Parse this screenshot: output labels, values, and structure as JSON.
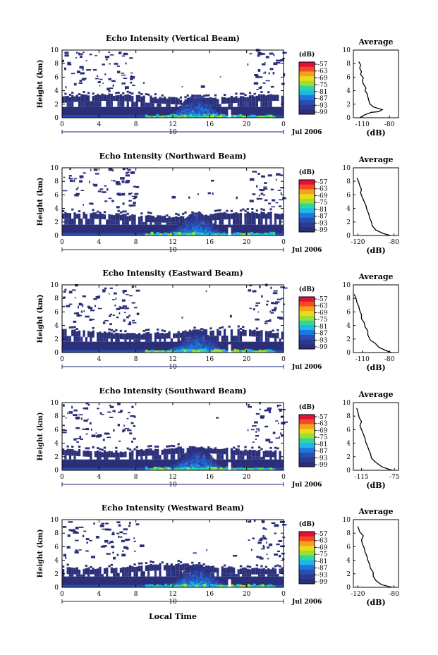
{
  "chart_data": [
    {
      "type": "heatmap",
      "title": "Echo Intensity (Vertical Beam)",
      "ylabel": "Height (km)",
      "xlim": [
        0,
        24
      ],
      "ylim": [
        0,
        10
      ],
      "x_ticks": [
        "0",
        "4",
        "8",
        "12",
        "16",
        "20",
        "0"
      ],
      "y_ticks": [
        "0",
        "2",
        "4",
        "6",
        "8",
        "10"
      ],
      "day_label": "10",
      "month_label": "Jul 2006",
      "colorbar": {
        "unit": "(dB)",
        "ticks": [
          "-57",
          "-63",
          "-69",
          "-75",
          "-81",
          "-87",
          "-93",
          "-99"
        ]
      },
      "profile": {
        "title": "Average",
        "xlabel": "(dB)",
        "x_ticks": [
          "-110",
          "-80"
        ],
        "xlim": [
          -120,
          -70
        ],
        "points": [
          [
            -113,
            0
          ],
          [
            -108,
            0.4
          ],
          [
            -100,
            0.8
          ],
          [
            -92,
            0.9
          ],
          [
            -88,
            1.2
          ],
          [
            -98,
            1.6
          ],
          [
            -102,
            2.1
          ],
          [
            -103,
            2.6
          ],
          [
            -104,
            3.1
          ],
          [
            -105,
            3.6
          ],
          [
            -107,
            4.0
          ],
          [
            -106,
            4.4
          ],
          [
            -109,
            5.0
          ],
          [
            -110,
            5.5
          ],
          [
            -109,
            5.9
          ],
          [
            -112,
            6.4
          ],
          [
            -111,
            6.8
          ],
          [
            -113,
            7.3
          ],
          [
            -112,
            7.8
          ],
          [
            -114,
            8.3
          ]
        ]
      }
    },
    {
      "type": "heatmap",
      "title": "Echo Intensity (Northward Beam)",
      "ylabel": "Height (km)",
      "xlim": [
        0,
        24
      ],
      "ylim": [
        0,
        10
      ],
      "x_ticks": [
        "0",
        "4",
        "8",
        "12",
        "16",
        "20",
        "0"
      ],
      "y_ticks": [
        "0",
        "2",
        "4",
        "6",
        "8",
        "10"
      ],
      "day_label": "10",
      "month_label": "Jul 2006",
      "colorbar": {
        "unit": "(dB)",
        "ticks": [
          "-57",
          "-63",
          "-69",
          "-75",
          "-81",
          "-87",
          "-93",
          "-99"
        ]
      },
      "profile": {
        "title": "Average",
        "xlabel": "(dB)",
        "x_ticks": [
          "-120",
          "-80"
        ],
        "xlim": [
          -125,
          -75
        ],
        "points": [
          [
            -84,
            0
          ],
          [
            -92,
            0.3
          ],
          [
            -100,
            0.8
          ],
          [
            -104,
            1.4
          ],
          [
            -105,
            2.0
          ],
          [
            -107,
            2.6
          ],
          [
            -108,
            3.2
          ],
          [
            -110,
            3.8
          ],
          [
            -111,
            4.4
          ],
          [
            -113,
            5.0
          ],
          [
            -115,
            5.6
          ],
          [
            -117,
            6.3
          ],
          [
            -116,
            6.8
          ],
          [
            -118,
            7.4
          ],
          [
            -119,
            7.9
          ],
          [
            -121,
            8.5
          ]
        ]
      }
    },
    {
      "type": "heatmap",
      "title": "Echo Intensity (Eastward Beam)",
      "ylabel": "Height (km)",
      "xlim": [
        0,
        24
      ],
      "ylim": [
        0,
        10
      ],
      "x_ticks": [
        "0",
        "4",
        "8",
        "12",
        "16",
        "20",
        "0"
      ],
      "y_ticks": [
        "0",
        "2",
        "4",
        "6",
        "8",
        "10"
      ],
      "day_label": "10",
      "month_label": "Jul 2006",
      "colorbar": {
        "unit": "(dB)",
        "ticks": [
          "-57",
          "-63",
          "-69",
          "-75",
          "-81",
          "-87",
          "-93",
          "-99"
        ]
      },
      "profile": {
        "title": "Average",
        "xlabel": "(dB)",
        "x_ticks": [
          "-110",
          "-80"
        ],
        "xlim": [
          -120,
          -70
        ],
        "points": [
          [
            -78,
            0
          ],
          [
            -84,
            0.3
          ],
          [
            -92,
            0.8
          ],
          [
            -96,
            1.4
          ],
          [
            -101,
            1.8
          ],
          [
            -104,
            2.6
          ],
          [
            -104,
            3.2
          ],
          [
            -107,
            3.8
          ],
          [
            -108,
            4.4
          ],
          [
            -111,
            5.0
          ],
          [
            -111,
            5.6
          ],
          [
            -113,
            6.2
          ],
          [
            -114,
            6.8
          ],
          [
            -116,
            7.4
          ],
          [
            -117,
            8.0
          ],
          [
            -119,
            8.6
          ]
        ]
      }
    },
    {
      "type": "heatmap",
      "title": "Echo Intensity (Southward Beam)",
      "ylabel": "Height (km)",
      "xlim": [
        0,
        24
      ],
      "ylim": [
        0,
        10
      ],
      "x_ticks": [
        "0",
        "4",
        "8",
        "12",
        "16",
        "20",
        "0"
      ],
      "y_ticks": [
        "0",
        "2",
        "4",
        "6",
        "8",
        "10"
      ],
      "day_label": "10",
      "month_label": "Jul 2006",
      "colorbar": {
        "unit": "(dB)",
        "ticks": [
          "-57",
          "-63",
          "-69",
          "-75",
          "-81",
          "-87",
          "-93",
          "-99"
        ]
      },
      "profile": {
        "title": "Average",
        "xlabel": "(dB)",
        "x_ticks": [
          "-115",
          "-75"
        ],
        "xlim": [
          -125,
          -70
        ],
        "points": [
          [
            -78,
            0
          ],
          [
            -90,
            0.5
          ],
          [
            -98,
            1.2
          ],
          [
            -103,
            1.8
          ],
          [
            -104,
            2.4
          ],
          [
            -106,
            3.0
          ],
          [
            -108,
            3.6
          ],
          [
            -110,
            4.2
          ],
          [
            -111,
            4.8
          ],
          [
            -113,
            5.4
          ],
          [
            -115,
            6.0
          ],
          [
            -117,
            6.6
          ],
          [
            -115,
            7.2
          ],
          [
            -118,
            7.8
          ],
          [
            -119,
            8.4
          ],
          [
            -121,
            9.2
          ]
        ]
      }
    },
    {
      "type": "heatmap",
      "title": "Echo Intensity (Westward Beam)",
      "ylabel": "Height (km)",
      "xlim": [
        0,
        24
      ],
      "ylim": [
        0,
        10
      ],
      "x_ticks": [
        "0",
        "4",
        "8",
        "12",
        "16",
        "20",
        "0"
      ],
      "y_ticks": [
        "0",
        "2",
        "4",
        "6",
        "8",
        "10"
      ],
      "day_label": "10",
      "month_label": "Jul 2006",
      "colorbar": {
        "unit": "(dB)",
        "ticks": [
          "-57",
          "-63",
          "-69",
          "-75",
          "-81",
          "-87",
          "-93",
          "-99"
        ]
      },
      "profile": {
        "title": "Average",
        "xlabel": "(dB)",
        "x_ticks": [
          "-120",
          "-80"
        ],
        "xlim": [
          -125,
          -75
        ],
        "points": [
          [
            -82,
            0
          ],
          [
            -94,
            0.4
          ],
          [
            -100,
            1.0
          ],
          [
            -103,
            1.6
          ],
          [
            -103,
            2.2
          ],
          [
            -106,
            2.8
          ],
          [
            -107,
            3.4
          ],
          [
            -109,
            4.0
          ],
          [
            -110,
            4.6
          ],
          [
            -112,
            5.2
          ],
          [
            -113,
            5.8
          ],
          [
            -115,
            6.4
          ],
          [
            -116,
            7.0
          ],
          [
            -114,
            7.6
          ],
          [
            -118,
            8.2
          ],
          [
            -120,
            9.0
          ]
        ]
      }
    }
  ],
  "xlabel": "Local Time",
  "colors": {
    "scale": [
      "#e0103a",
      "#f24a22",
      "#f7a11a",
      "#eadb18",
      "#9bdf32",
      "#2fd6a0",
      "#1fb7e8",
      "#1c79dc",
      "#2a4fb4",
      "#2c3a92",
      "#2b2f78"
    ]
  }
}
